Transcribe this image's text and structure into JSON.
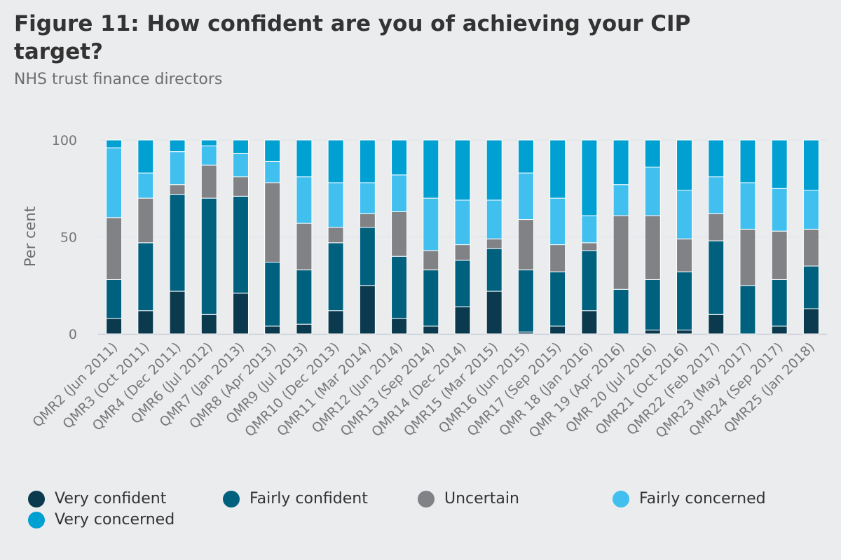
{
  "chart_data": {
    "type": "bar",
    "stacked": true,
    "title": "Figure 11: How confident are you of achieving your CIP target?",
    "subtitle": "NHS trust finance directors",
    "xlabel": "",
    "ylabel": "Per cent",
    "ylim": [
      0,
      100
    ],
    "yticks": [
      0,
      50,
      100
    ],
    "categories": [
      "QMR2 (Jun 2011)",
      "QMR3 (Oct 2011)",
      "QMR4 (Dec 2011)",
      "QMR6 (Jul 2012)",
      "QMR7 (Jan 2013)",
      "QMR8 (Apr 2013)",
      "QMR9 (Jul 2013)",
      "QMR10 (Dec 2013)",
      "QMR11 (Mar 2014)",
      "QMR12 (Jun 2014)",
      "QMR13 (Sep 2014)",
      "QMR14 (Dec 2014)",
      "QMR15 (Mar 2015)",
      "QMR16 (Jun 2015)",
      "QMR17 (Sep 2015)",
      "QMR 18 (Jan 2016)",
      "QMR 19 (Apr 2016)",
      "QMR 20 (Jul 2016)",
      "QMR21 (Oct 2016)",
      "QMR22 (Feb 2017)",
      "QMR23 (May 2017)",
      "QMR24 (Sep 2017)",
      "QMR25 (Jan 2018)"
    ],
    "series": [
      {
        "name": "Very confident",
        "color": "#0b3a4e",
        "values": [
          8,
          12,
          22,
          10,
          21,
          4,
          5,
          12,
          25,
          8,
          4,
          14,
          22,
          1,
          4,
          12,
          0,
          2,
          2,
          10,
          0,
          4,
          13
        ]
      },
      {
        "name": "Fairly confident",
        "color": "#00617f",
        "values": [
          20,
          35,
          50,
          60,
          50,
          33,
          28,
          35,
          30,
          32,
          29,
          24,
          22,
          32,
          28,
          31,
          23,
          26,
          30,
          38,
          25,
          24,
          22
        ]
      },
      {
        "name": "Uncertain",
        "color": "#808285",
        "values": [
          32,
          23,
          5,
          17,
          10,
          41,
          24,
          8,
          7,
          23,
          10,
          8,
          5,
          26,
          14,
          4,
          38,
          33,
          17,
          14,
          29,
          25,
          19
        ]
      },
      {
        "name": "Fairly concerned",
        "color": "#41c0f0",
        "values": [
          36,
          13,
          17,
          10,
          12,
          11,
          24,
          23,
          16,
          19,
          27,
          23,
          20,
          24,
          24,
          14,
          16,
          25,
          25,
          19,
          24,
          22,
          20
        ]
      },
      {
        "name": "Very concerned",
        "color": "#00a0d2",
        "values": [
          4,
          17,
          6,
          3,
          7,
          11,
          19,
          22,
          22,
          18,
          30,
          31,
          31,
          17,
          30,
          39,
          23,
          14,
          26,
          19,
          22,
          25,
          26
        ]
      }
    ],
    "legend_position": "bottom"
  }
}
